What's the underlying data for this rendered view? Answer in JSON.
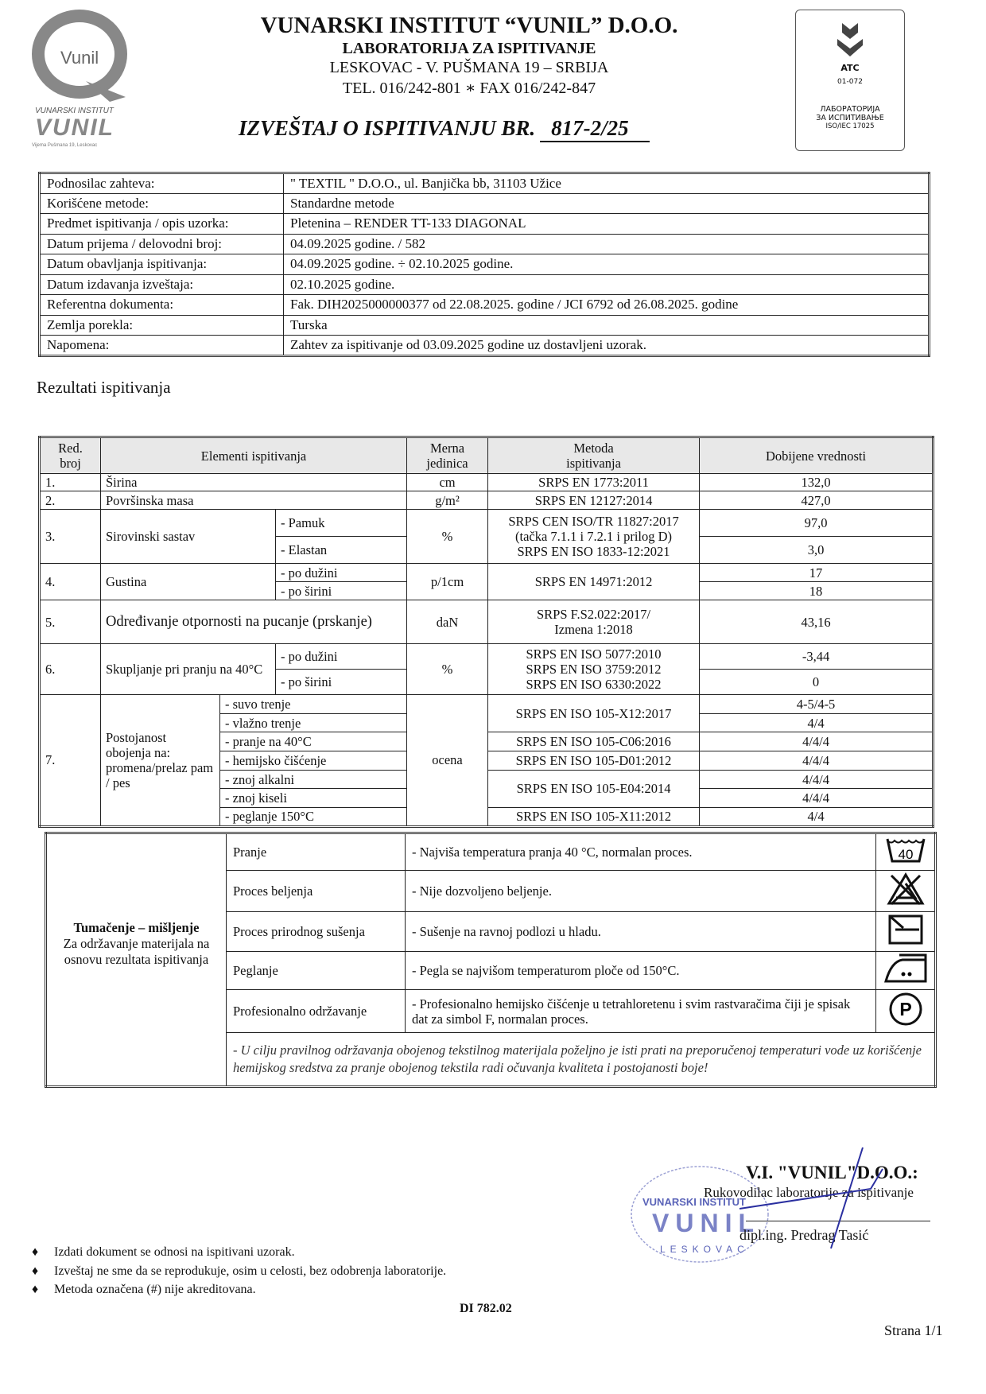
{
  "header": {
    "logo_text": "Vunil",
    "logo_sub1": "VUNARSKI INSTITUT",
    "logo_sub2": "VUNIL",
    "logo_sub3": "Vijema Pušmana 19, Leskovac",
    "org_name": "VUNARSKI INSTITUT “VUNIL” D.O.O.",
    "lab_name": "LABORATORIJA ZA ISPITIVANJE",
    "address": "LESKOVAC - V. PUŠMANA 19 – SRBIJA",
    "contact": "TEL. 016/242-801 ∗ FAX 016/242-847",
    "report_title": "IZVEŠTAJ O ISPITIVANJU BR.",
    "report_number": "817-2/25",
    "accreditation": {
      "mark": "ATC",
      "code": "01-072",
      "line1": "ЛАБОРАТОРИЈА",
      "line2": "ЗА ИСПИТИВАЊЕ",
      "line3": "ISO/IEC 17025"
    }
  },
  "info": [
    {
      "label": "Podnosilac zahteva:",
      "value": "\" TEXTIL \" D.O.O., ul. Banjička bb, 31103 Užice"
    },
    {
      "label": "Korišćene metode:",
      "value": "Standardne metode"
    },
    {
      "label": "Predmet ispitivanja / opis uzorka:",
      "value": "Pletenina – RENDER TT-133 DIAGONAL"
    },
    {
      "label": "Datum prijema / delovodni broj:",
      "value": "04.09.2025 godine.     /    582"
    },
    {
      "label": "Datum obavljanja ispitivanja:",
      "value": "04.09.2025 godine. ÷ 02.10.2025 godine."
    },
    {
      "label": "Datum izdavanja izveštaja:",
      "value": "02.10.2025 godine."
    },
    {
      "label": "Referentna dokumenta:",
      "value": "Fak. DIH2025000000377 od 22.08.2025. godine  /  JCI 6792 od 26.08.2025. godine"
    },
    {
      "label": "Zemlja porekla:",
      "value": "Turska"
    },
    {
      "label": "Napomena:",
      "value": "Zahtev za ispitivanje od 03.09.2025 godine uz dostavljeni uzorak."
    }
  ],
  "results_heading": "Rezultati ispitivanja",
  "results": {
    "headers": {
      "no1": "Red.",
      "no2": "broj",
      "element": "Elementi ispitivanja",
      "unit1": "Merna",
      "unit2": "jedinica",
      "method1": "Metoda",
      "method2": "ispitivanja",
      "value": "Dobijene vrednosti"
    },
    "r1": {
      "no": "1.",
      "name": "Širina",
      "unit": "cm",
      "method": "SRPS EN 1773:2011",
      "value": "132,0"
    },
    "r2": {
      "no": "2.",
      "name": "Površinska masa",
      "unit": "g/m²",
      "method": "SRPS EN 12127:2014",
      "value": "427,0"
    },
    "r3": {
      "no": "3.",
      "name": "Sirovinski sastav",
      "sub1": "- Pamuk",
      "sub2": "- Elastan",
      "unit": "%",
      "method1": "SRPS CEN ISO/TR 11827:2017",
      "method2": "(tačka 7.1.1 i 7.2.1 i prilog D)",
      "method3": "SRPS EN ISO 1833-12:2021",
      "value1": "97,0",
      "value2": "3,0"
    },
    "r4": {
      "no": "4.",
      "name": "Gustina",
      "sub1": "- po dužini",
      "sub2": "- po širini",
      "unit": "p/1cm",
      "method": "SRPS EN 14971:2012",
      "value1": "17",
      "value2": "18"
    },
    "r5": {
      "no": "5.",
      "name": "Određivanje otpornosti na pucanje (prskanje)",
      "unit": "daN",
      "method1": "SRPS F.S2.022:2017/",
      "method2": "Izmena 1:2018",
      "value": "43,16"
    },
    "r6": {
      "no": "6.",
      "name": "Skupljanje pri pranju na 40°C",
      "sub1": "- po dužini",
      "sub2": "- po širini",
      "unit": "%",
      "method1": "SRPS EN ISO 5077:2010",
      "method2": "SRPS EN ISO 3759:2012",
      "method3": "SRPS EN ISO 6330:2022",
      "value1": "-3,44",
      "value2": "0"
    },
    "r7": {
      "no": "7.",
      "name": "Postojanost obojenja na: promena/prelaz pam / pes",
      "unit": "ocena",
      "subs": [
        "- suvo trenje",
        "- vlažno trenje",
        "- pranje na 40°C",
        "- hemijsko čišćenje",
        "- znoj alkalni",
        "- znoj kiseli",
        "- peglanje 150°C"
      ],
      "methods": [
        "SRPS EN ISO 105-X12:2017",
        "SRPS EN ISO 105-C06:2016",
        "SRPS EN ISO 105-D01:2012",
        "SRPS EN ISO 105-E04:2014",
        "SRPS EN ISO 105-X11:2012"
      ],
      "values": [
        "4-5/4-5",
        "4/4",
        "4/4/4",
        "4/4/4",
        "4/4/4",
        "4/4/4",
        "4/4"
      ]
    }
  },
  "care": {
    "title": "Tumačenje – mišljenje",
    "subtitle": "Za održavanje materijala na osnovu rezultata ispitivanja",
    "rows": [
      {
        "label": "Pranje",
        "text": "-  Najviša temperatura pranja 40 °C, normalan proces.",
        "icon": "wash-40-icon",
        "icon_text": "40"
      },
      {
        "label": "Proces beljenja",
        "text": "-  Nije dozvoljeno beljenje.",
        "icon": "no-bleach-icon"
      },
      {
        "label": "Proces prirodnog sušenja",
        "text": "-  Sušenje na ravnoj podlozi u hladu.",
        "icon": "dry-flat-shade-icon"
      },
      {
        "label": "Peglanje",
        "text": "-  Pegla se najvišom temperaturom ploče od 150°C.",
        "icon": "iron-two-dots-icon"
      },
      {
        "label": "Profesionalno održavanje",
        "text": "-  Profesionalno hemijsko čišćenje u tetrahloretenu i svim rastvaračima čiji je spisak dat za simbol F, normalan proces.",
        "icon": "professional-clean-p-icon",
        "icon_text": "P"
      }
    ],
    "note": "- U cilju pravilnog održavanja obojenog tekstilnog materijala poželjno je isti prati na preporučenoj temperaturi vode uz korišćenje hemijskog sredstva za pranje obojenog tekstila radi očuvanja kvaliteta i postojanosti boje!"
  },
  "signature": {
    "org": "V.I. \"VUNIL\"D.O.O.:",
    "role": "Rukovodilac laboratorije za ispitivanje",
    "name": "dipl.ing. Predrag Tasić",
    "stamp_line1": "VUNARSKI INSTITUT",
    "stamp_line2": "VUNIL",
    "stamp_line3": "LESKOVAC",
    "stamp_color": "#5a63b8",
    "signature_color": "#2a2fa0"
  },
  "footer": {
    "notes": [
      "Izdati dokument se odnosi na ispitivani uzorak.",
      "Izveštaj ne sme da se reprodukuje, osim u celosti, bez odobrenja laboratorije.",
      "Metoda označena (#) nije akreditovana."
    ],
    "doc_code": "DI 782.02",
    "page": "Strana 1/1"
  }
}
